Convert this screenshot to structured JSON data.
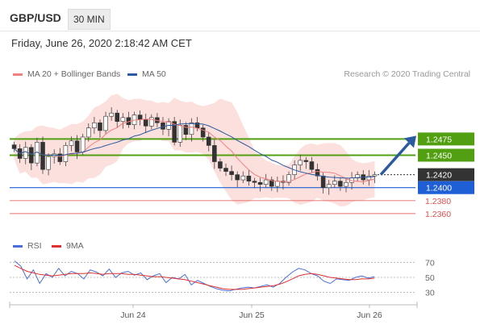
{
  "header": {
    "symbol": "GBP/USD",
    "timeframe": "30 MIN",
    "datetime": "Friday, June 26, 2020 2:18:42 AM CET"
  },
  "legend": {
    "ma20": {
      "label": "MA 20 + Bollinger Bands",
      "color": "#f08080"
    },
    "ma50": {
      "label": "MA 50",
      "color": "#2c5aa0"
    },
    "credit": "Research © 2020 Trading Central"
  },
  "rsi_legend": {
    "rsi": {
      "label": "RSI",
      "color": "#4a6fd8"
    },
    "ma9": {
      "label": "9MA",
      "color": "#e03030"
    }
  },
  "chart_data": {
    "type": "candlestick",
    "x_labels": [
      "Jun 24",
      "Jun 25",
      "Jun 26"
    ],
    "ylim": [
      1.2335,
      1.2555
    ],
    "levels": [
      {
        "value": 1.2475,
        "label": "1.2475",
        "color": "#52a012",
        "kind": "resistance"
      },
      {
        "value": 1.245,
        "label": "1.2450",
        "color": "#52a012",
        "kind": "resistance"
      },
      {
        "value": 1.242,
        "label": "1.2420",
        "color": "#333333",
        "kind": "current"
      },
      {
        "value": 1.24,
        "label": "1.2400",
        "color": "#1f5fd6",
        "kind": "pivot"
      },
      {
        "value": 1.238,
        "label": "1.2380",
        "color": "#e05050",
        "kind": "support"
      },
      {
        "value": 1.236,
        "label": "1.2360",
        "color": "#e05050",
        "kind": "support"
      }
    ],
    "close_path": [
      1.246,
      1.2445,
      1.2462,
      1.2438,
      1.247,
      1.2428,
      1.2448,
      1.2452,
      1.244,
      1.2465,
      1.2472,
      1.2455,
      1.2478,
      1.2492,
      1.25,
      1.2488,
      1.251,
      1.2515,
      1.2502,
      1.2508,
      1.2497,
      1.2512,
      1.2505,
      1.2495,
      1.2508,
      1.25,
      1.249,
      1.2502,
      1.247,
      1.2496,
      1.2482,
      1.25,
      1.2492,
      1.2478,
      1.2465,
      1.244,
      1.243,
      1.2425,
      1.242,
      1.2412,
      1.2418,
      1.241,
      1.2408,
      1.2405,
      1.2412,
      1.2402,
      1.241,
      1.2408,
      1.242,
      1.2435,
      1.2442,
      1.244,
      1.2428,
      1.2418,
      1.24,
      1.2405,
      1.241,
      1.2402,
      1.2408,
      1.2415,
      1.242,
      1.2412,
      1.2418,
      1.242
    ],
    "projection": {
      "from": 1.242,
      "to": 1.2475
    },
    "rsi": {
      "levels": [
        70,
        50,
        30
      ],
      "ylim": [
        20,
        80
      ],
      "rsi_values": [
        72,
        65,
        48,
        60,
        42,
        55,
        50,
        62,
        52,
        58,
        55,
        48,
        60,
        57,
        52,
        61,
        50,
        56,
        58,
        53,
        56,
        47,
        52,
        55,
        43,
        50,
        48,
        54,
        40,
        46,
        42,
        38,
        35,
        33,
        32,
        34,
        36,
        37,
        36,
        38,
        40,
        37,
        42,
        50,
        57,
        62,
        60,
        55,
        52,
        45,
        42,
        48,
        47,
        46,
        50,
        52,
        49,
        51
      ],
      "ma9_values": [
        66,
        62,
        58,
        56,
        54,
        53,
        52,
        53,
        54,
        55,
        55,
        55,
        56,
        55,
        54,
        55,
        55,
        55,
        54,
        54,
        53,
        52,
        51,
        51,
        50,
        49,
        48,
        47,
        45,
        43,
        41,
        39,
        37,
        35,
        34,
        34,
        34,
        35,
        36,
        37,
        38,
        39,
        41,
        44,
        48,
        52,
        54,
        55,
        54,
        52,
        50,
        49,
        48,
        47,
        47,
        48,
        48,
        49
      ]
    }
  }
}
